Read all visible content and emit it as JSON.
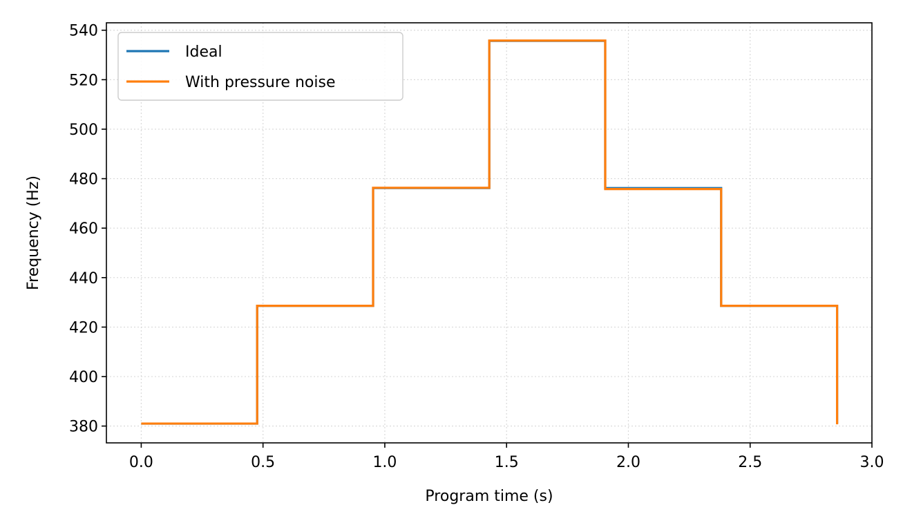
{
  "chart_data": {
    "type": "line",
    "drawstyle": "steps-post",
    "xlabel": "Program time (s)",
    "ylabel": "Frequency (Hz)",
    "xlim": [
      -0.143,
      3.0
    ],
    "ylim": [
      373.2,
      543.0
    ],
    "xticks": [
      0.0,
      0.5,
      1.0,
      1.5,
      2.0,
      2.5,
      3.0
    ],
    "xtick_labels": [
      "0.0",
      "0.5",
      "1.0",
      "1.5",
      "2.0",
      "2.5",
      "3.0"
    ],
    "yticks": [
      380,
      400,
      420,
      440,
      460,
      480,
      500,
      520,
      540
    ],
    "ytick_labels": [
      "380",
      "400",
      "420",
      "440",
      "460",
      "480",
      "500",
      "520",
      "540"
    ],
    "grid": true,
    "legend_position": "top-left",
    "series": [
      {
        "name": "Ideal",
        "color": "#1f77b4",
        "x": [
          0.0,
          0.476,
          0.952,
          1.429,
          1.905,
          2.381,
          2.857,
          2.857
        ],
        "y": [
          381.0,
          428.6,
          476.2,
          535.7,
          476.2,
          428.6,
          428.6,
          381.0
        ]
      },
      {
        "name": "With pressure noise",
        "color": "#ff7f0e",
        "x": [
          0.0,
          0.476,
          0.952,
          1.429,
          1.905,
          2.381,
          2.857,
          2.857
        ],
        "y": [
          381.0,
          428.6,
          476.3,
          535.8,
          475.8,
          428.6,
          428.6,
          380.7
        ]
      }
    ]
  }
}
